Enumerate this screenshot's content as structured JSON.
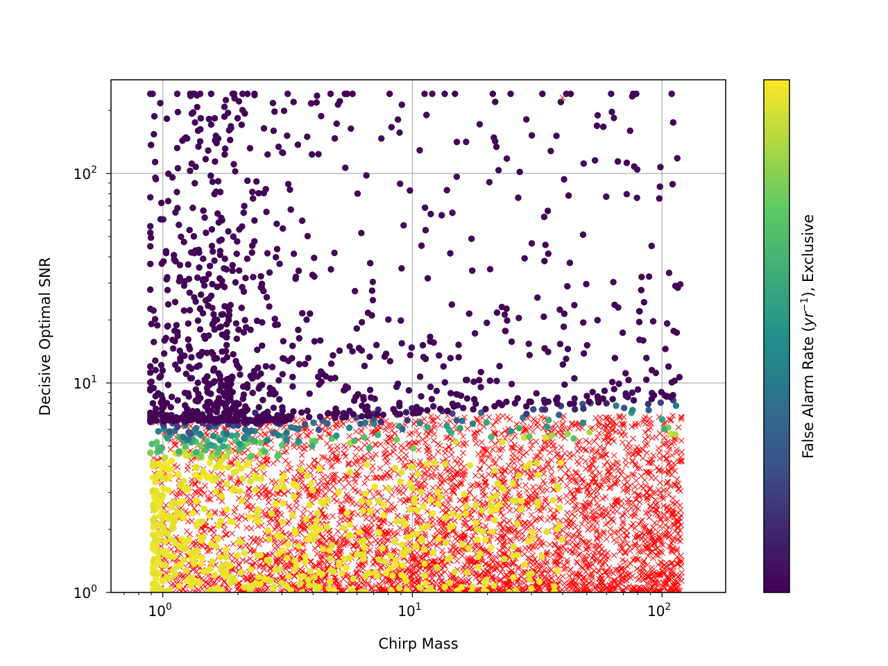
{
  "chart_data": {
    "type": "scatter",
    "title": "",
    "xlabel": "Chirp Mass",
    "ylabel": "Decisive Optimal SNR",
    "xscale": "log",
    "yscale": "log",
    "xlim": [
      0.62,
      180
    ],
    "ylim": [
      1,
      280
    ],
    "grid": true,
    "x_ticks": [
      {
        "value": 1,
        "base": "10",
        "exp": "0"
      },
      {
        "value": 10,
        "base": "10",
        "exp": "1"
      },
      {
        "value": 100,
        "base": "10",
        "exp": "2"
      }
    ],
    "y_ticks": [
      {
        "value": 1,
        "base": "10",
        "exp": "0"
      },
      {
        "value": 10,
        "base": "10",
        "exp": "1"
      },
      {
        "value": 100,
        "base": "10",
        "exp": "2"
      }
    ],
    "colorbar": {
      "label_prefix": "False Alarm Rate (",
      "label_var": "yr",
      "label_exp": "−1",
      "label_suffix": "), Exclusive",
      "colormap": "viridis",
      "colors": [
        "#440154",
        "#3b528b",
        "#21918c",
        "#5ec962",
        "#fde725"
      ]
    },
    "series": [
      {
        "name": "",
        "marker": "circle",
        "color_by": "false_alarm_rate",
        "mass_range": [
          0.88,
          120
        ],
        "approx_count": 5200
      },
      {
        "name": "",
        "marker": "x",
        "color": "#ff0000",
        "mass_range": [
          0.9,
          120
        ],
        "snr_range": [
          1,
          7
        ],
        "approx_count": 4000
      }
    ],
    "notable_points": [
      {
        "marker": "x",
        "x": 40,
        "y": 230
      }
    ]
  }
}
